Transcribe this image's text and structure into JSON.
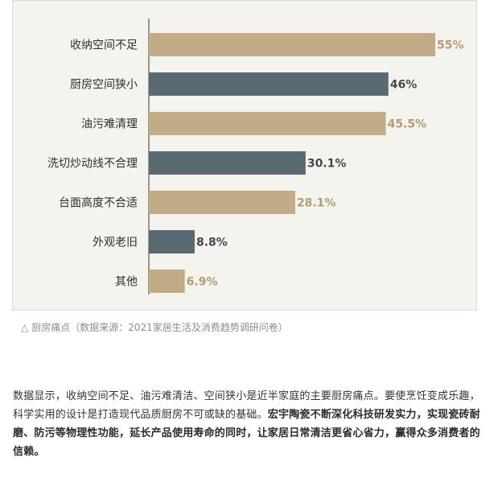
{
  "chart_data": {
    "type": "bar",
    "orientation": "horizontal",
    "categories": [
      "收纳空间不足",
      "厨房空间狭小",
      "油污难清理",
      "洗切炒动线不合理",
      "台面高度不合适",
      "外观老旧",
      "其他"
    ],
    "values": [
      55,
      46,
      45.5,
      30.1,
      28.1,
      8.8,
      6.9
    ],
    "value_labels": [
      "55%",
      "46%",
      "45.5%",
      "30.1%",
      "28.1%",
      "8.8%",
      "6.9%"
    ],
    "bar_colors": [
      "#c4ab87",
      "#5a6a73",
      "#c4ab87",
      "#5a6a73",
      "#c4ab87",
      "#5a6a73",
      "#c4ab87"
    ],
    "label_colors": [
      "#b49a74",
      "#3f4a50",
      "#b49a74",
      "#3f4a50",
      "#b49a74",
      "#3f4a50",
      "#b49a74"
    ],
    "xlim": [
      0,
      55
    ],
    "grid": false,
    "title": "",
    "xlabel": "",
    "ylabel": ""
  },
  "caption": {
    "icon": "triangle-icon",
    "text": "厨房痛点（数据来源：2021家居生活及消费趋势调研问卷）"
  },
  "body": {
    "normal": "数据显示，收纳空间不足、油污难清洁、空间狭小是近半家庭的主要厨房痛点。要使烹饪变成乐趣，科学实用的设计是打造现代品质厨房不可或缺的基础。",
    "bold": "宏宇陶瓷不断深化科技研发实力，实现瓷砖耐磨、防污等物理性功能，延长产品使用寿命的同时，让家居日常清洁更省心省力，赢得众多消费者的信赖。"
  }
}
